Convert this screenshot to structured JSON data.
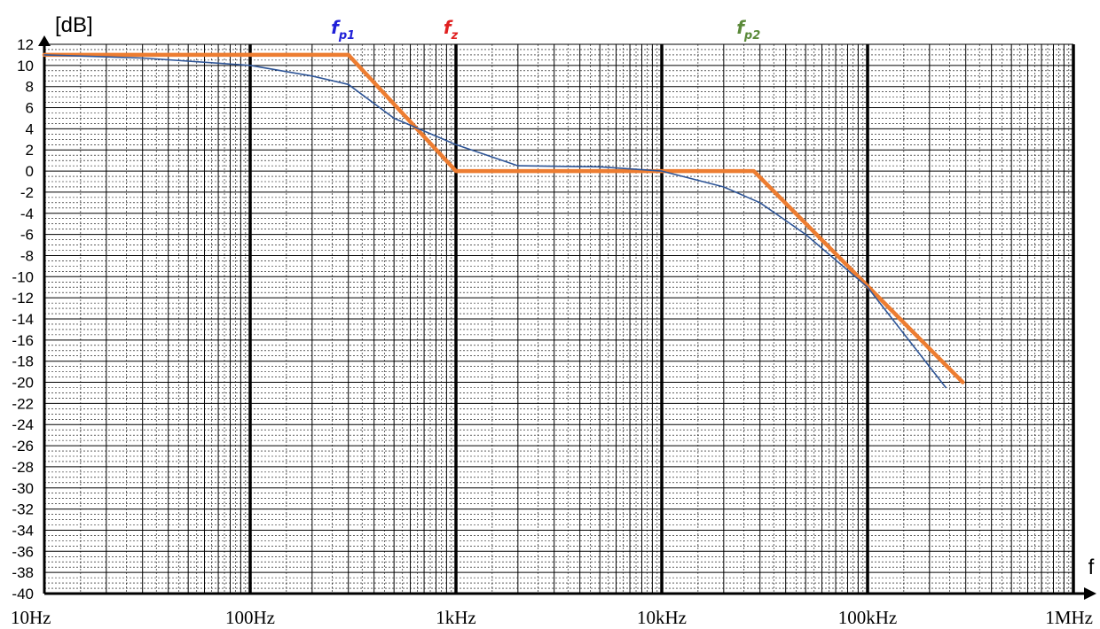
{
  "chart_data": {
    "type": "line",
    "title": "",
    "xlabel": "f",
    "ylabel": "[dB]",
    "x_scale": "log",
    "xlim": [
      10,
      1000000
    ],
    "ylim": [
      -40,
      12
    ],
    "grid": true,
    "x_ticks": [
      {
        "value": 10,
        "label": "10Hz"
      },
      {
        "value": 100,
        "label": "100Hz"
      },
      {
        "value": 1000,
        "label": "1kHz"
      },
      {
        "value": 10000,
        "label": "10kHz"
      },
      {
        "value": 100000,
        "label": "100kHz"
      },
      {
        "value": 1000000,
        "label": "1MHz"
      }
    ],
    "y_ticks": [
      12,
      10,
      8,
      6,
      4,
      2,
      0,
      -2,
      -4,
      -6,
      -8,
      -10,
      -12,
      -14,
      -16,
      -18,
      -20,
      -22,
      -24,
      -26,
      -28,
      -30,
      -32,
      -34,
      -36,
      -38,
      -40
    ],
    "series": [
      {
        "color": "#ED7D31",
        "style": "thick",
        "points": [
          [
            10,
            11
          ],
          [
            300,
            11
          ],
          [
            1000,
            0
          ],
          [
            28000,
            0
          ],
          [
            290000,
            -20
          ]
        ]
      },
      {
        "color": "#2E5597",
        "style": "thin",
        "points": [
          [
            10,
            11
          ],
          [
            30,
            10.7
          ],
          [
            100,
            10
          ],
          [
            200,
            9
          ],
          [
            300,
            8.2
          ],
          [
            500,
            5
          ],
          [
            1000,
            2.5
          ],
          [
            2000,
            0.5
          ],
          [
            5000,
            0.4
          ],
          [
            10000,
            0
          ],
          [
            20000,
            -1.5
          ],
          [
            30000,
            -3
          ],
          [
            50000,
            -6
          ],
          [
            100000,
            -11
          ],
          [
            240000,
            -20.5
          ]
        ]
      }
    ],
    "annotations": [
      {
        "base": "f",
        "sub": "p1",
        "x": 300,
        "color": "#1F1FD8"
      },
      {
        "base": "f",
        "sub": "z",
        "x": 1000,
        "color": "#E02020"
      },
      {
        "base": "f",
        "sub": "p2",
        "x": 28000,
        "color": "#5B8A3A"
      }
    ]
  }
}
